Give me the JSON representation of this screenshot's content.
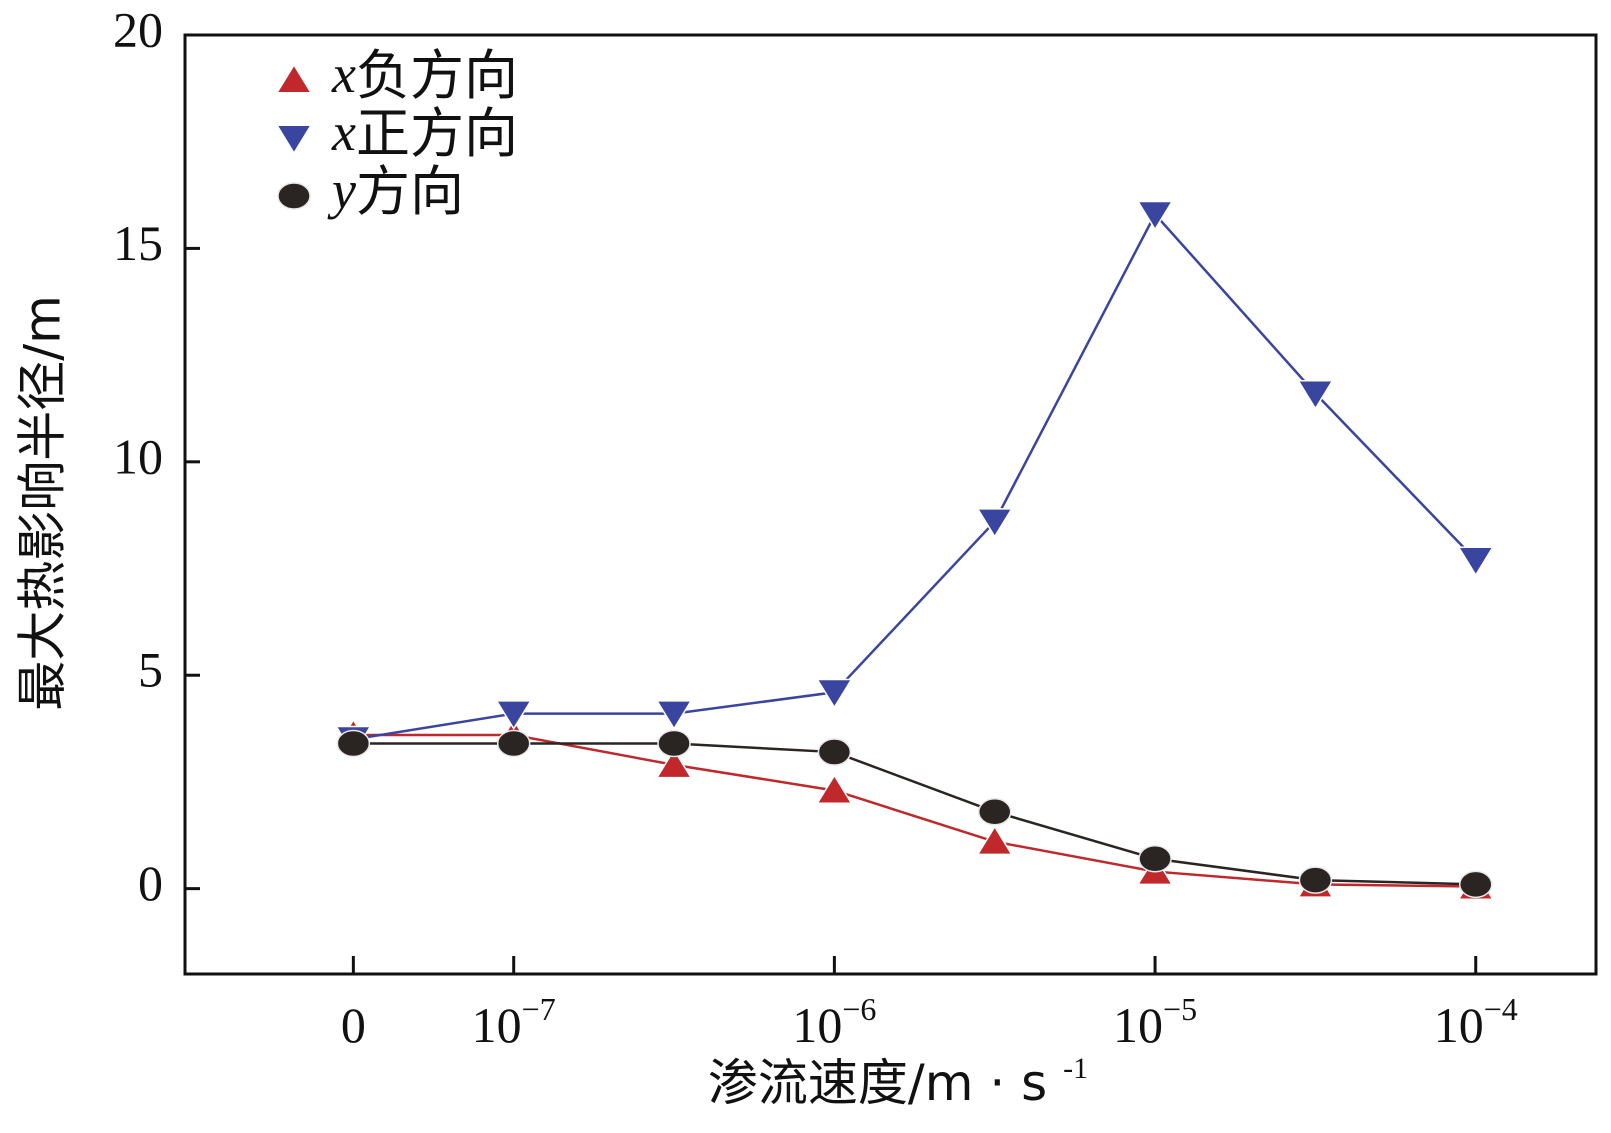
{
  "chart_data": {
    "type": "line",
    "title": "",
    "xlabel": "渗流速度/m · s",
    "xlabel_sup": "-1",
    "ylabel": "最大热影响半径/m",
    "ylim": [
      -2,
      20
    ],
    "yticks": [
      0,
      5,
      10,
      15,
      20
    ],
    "x": [
      0,
      1,
      2,
      3,
      4,
      5,
      6,
      7
    ],
    "xlim": [
      -1.05,
      7.75
    ],
    "xtick_positions": [
      0,
      1,
      3,
      5,
      7
    ],
    "xtick_labels": [
      {
        "base": "0",
        "exp": ""
      },
      {
        "base": "10",
        "exp": "−7"
      },
      {
        "base": "10",
        "exp": "−6"
      },
      {
        "base": "10",
        "exp": "−5"
      },
      {
        "base": "10",
        "exp": "−4"
      }
    ],
    "legend": {
      "position": "top-left"
    },
    "series": [
      {
        "name": "x负方向",
        "var": "x",
        "label": "负方向",
        "marker": "triangle-up",
        "color": "#c0282b",
        "values": [
          3.6,
          3.6,
          2.9,
          2.3,
          1.1,
          0.4,
          0.1,
          0.05
        ]
      },
      {
        "name": "x正方向",
        "var": "x",
        "label": "正方向",
        "marker": "triangle-down",
        "color": "#3a45a0",
        "values": [
          3.5,
          4.1,
          4.1,
          4.6,
          8.6,
          15.8,
          11.6,
          7.7
        ]
      },
      {
        "name": "y方向",
        "var": "y",
        "label": "方向",
        "marker": "circle",
        "color": "#2a2523",
        "values": [
          3.4,
          3.4,
          3.4,
          3.2,
          1.8,
          0.7,
          0.2,
          0.1
        ]
      }
    ]
  }
}
